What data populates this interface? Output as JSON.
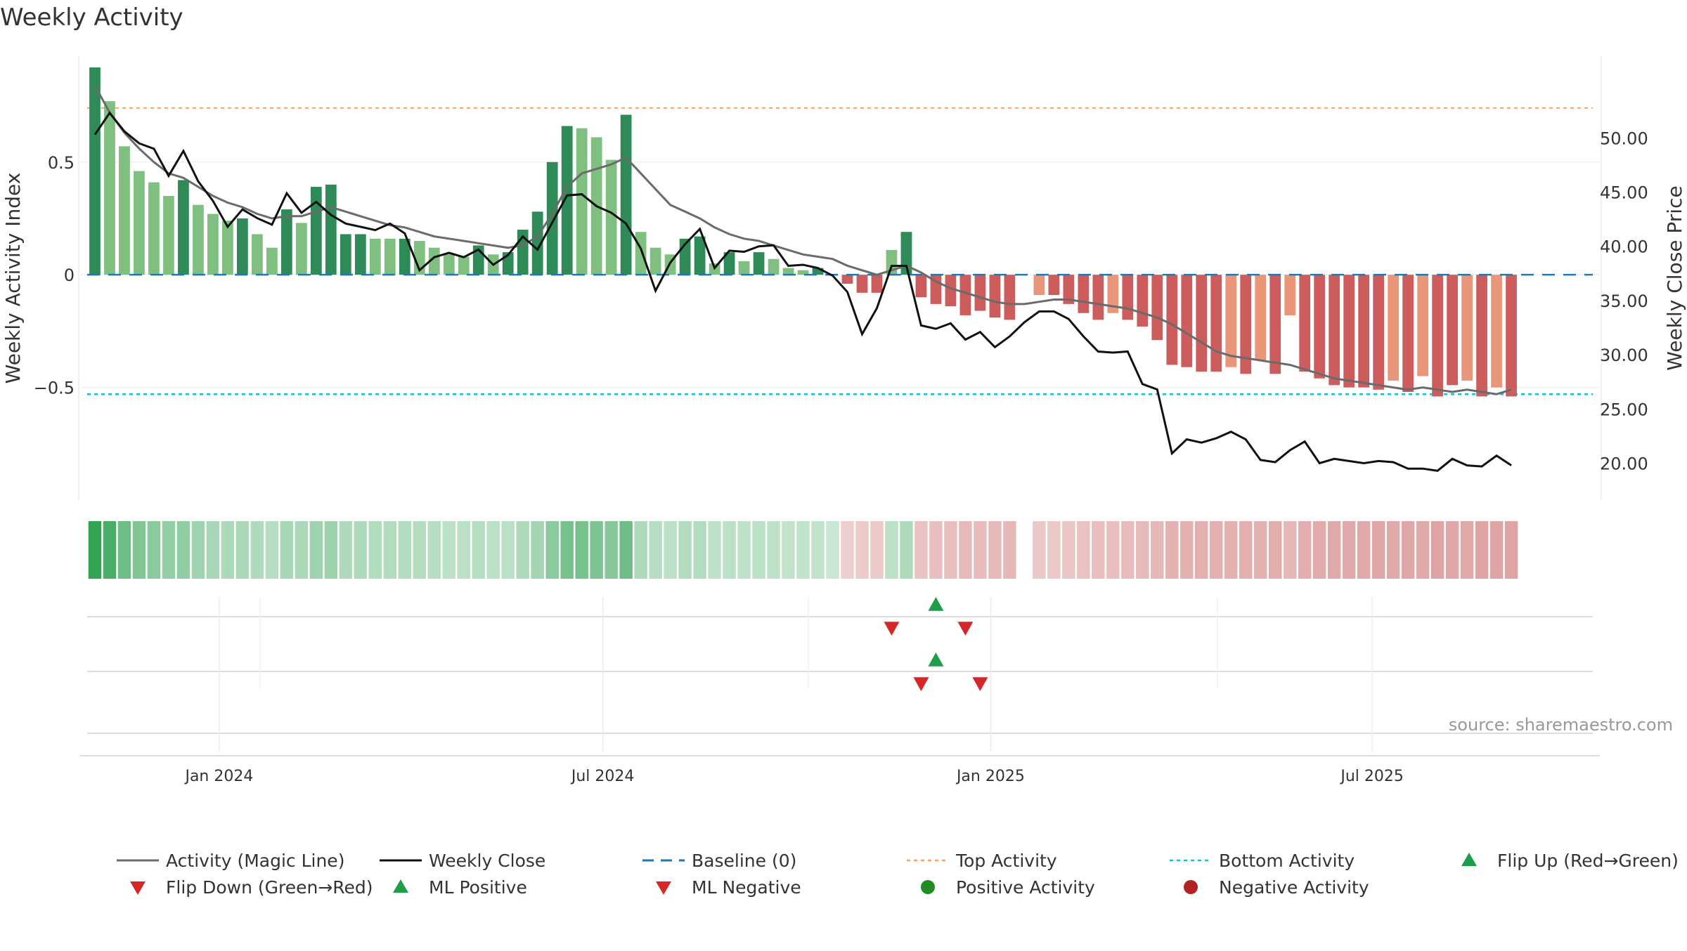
{
  "chart_data": {
    "type": "bar",
    "title": "Weekly Activity",
    "ylabel_left": "Weekly Activity Index",
    "ylabel_right": "Weekly Close Price",
    "source": "source: sharemaestro.com",
    "left_axis": {
      "ylim": [
        -1.0,
        0.92
      ],
      "ticks": [
        0.5,
        0,
        -0.5
      ],
      "tick_labels": [
        "0.5",
        "0",
        "−0.5"
      ]
    },
    "right_axis": {
      "ylim": [
        16.6,
        56.5
      ],
      "ticks": [
        50,
        45,
        40,
        35,
        30,
        25,
        20
      ],
      "tick_labels": [
        "50.00",
        "45.00",
        "40.00",
        "35.00",
        "30.00",
        "25.00",
        "20.00"
      ]
    },
    "x_axis": {
      "start": "2023-10-27",
      "end": "2025-10-17",
      "ticks": [
        {
          "label": "Jan 2024",
          "date": "2024-01-01"
        },
        {
          "label": "Jul 2024",
          "date": "2024-07-01"
        },
        {
          "label": "Jan 2025",
          "date": "2025-01-01"
        },
        {
          "label": "Jul 2025",
          "date": "2025-07-01"
        }
      ]
    },
    "colors": {
      "pos_dark": "#2e8b57",
      "pos_light": "#7fbf7f",
      "neg_dark": "#cd5c5c",
      "neg_light": "#e9967a",
      "magic_line": "#6b6b6b",
      "close_line": "#111111",
      "baseline": "#1f77b4",
      "top_line": "#f4a261",
      "bottom_line": "#17becf",
      "marker_up": "#1e9e4a",
      "marker_down": "#d62728",
      "positive_dot": "#228b22",
      "negative_dot": "#b22222"
    },
    "reference_lines": {
      "baseline": 0,
      "top_activity": 0.74,
      "bottom_activity": -0.53
    },
    "series": [
      {
        "name": "Weekly Activity",
        "kind": "bar",
        "start_date": "2023-11-03",
        "interval_days": 7,
        "values": [
          0.92,
          0.77,
          0.57,
          0.46,
          0.41,
          0.35,
          0.42,
          0.31,
          0.27,
          0.24,
          0.25,
          0.18,
          0.12,
          0.29,
          0.23,
          0.39,
          0.4,
          0.18,
          0.18,
          0.16,
          0.16,
          0.16,
          0.15,
          0.12,
          0.09,
          0.08,
          0.13,
          0.09,
          0.1,
          0.2,
          0.28,
          0.5,
          0.66,
          0.65,
          0.61,
          0.51,
          0.71,
          0.19,
          0.12,
          0.09,
          0.16,
          0.17,
          0.05,
          0.1,
          0.06,
          0.1,
          0.07,
          0.03,
          0.02,
          0.03,
          0.0,
          -0.04,
          -0.08,
          -0.08,
          0.11,
          0.19,
          -0.1,
          -0.13,
          -0.14,
          -0.18,
          -0.16,
          -0.19,
          -0.2,
          null,
          -0.09,
          -0.09,
          -0.13,
          -0.17,
          -0.2,
          -0.17,
          -0.2,
          -0.23,
          -0.29,
          -0.4,
          -0.41,
          -0.43,
          -0.43,
          -0.41,
          -0.44,
          -0.38,
          -0.44,
          -0.18,
          -0.43,
          -0.46,
          -0.49,
          -0.5,
          -0.5,
          -0.51,
          -0.47,
          -0.52,
          -0.45,
          -0.54,
          -0.49,
          -0.47,
          -0.54,
          -0.5,
          -0.54
        ],
        "shade": [
          "d",
          "l",
          "l",
          "l",
          "l",
          "l",
          "d",
          "l",
          "l",
          "l",
          "d",
          "l",
          "l",
          "d",
          "l",
          "d",
          "d",
          "d",
          "d",
          "l",
          "l",
          "d",
          "l",
          "l",
          "l",
          "l",
          "d",
          "l",
          "d",
          "d",
          "d",
          "d",
          "d",
          "l",
          "l",
          "l",
          "d",
          "l",
          "l",
          "l",
          "d",
          "d",
          "l",
          "d",
          "l",
          "d",
          "l",
          "l",
          "l",
          "d",
          "d",
          "d",
          "d",
          "d",
          "l",
          "d",
          "d",
          "d",
          "d",
          "d",
          "d",
          "d",
          "d",
          null,
          "l",
          "d",
          "d",
          "d",
          "d",
          "l",
          "d",
          "d",
          "d",
          "d",
          "d",
          "d",
          "d",
          "l",
          "d",
          "l",
          "d",
          "l",
          "d",
          "d",
          "d",
          "d",
          "d",
          "d",
          "l",
          "d",
          "l",
          "d",
          "d",
          "l",
          "d",
          "l",
          "d"
        ]
      },
      {
        "name": "Activity (Magic Line)",
        "kind": "line",
        "start_date": "2023-11-03",
        "interval_days": 7,
        "values": [
          0.84,
          0.72,
          0.63,
          0.56,
          0.5,
          0.45,
          0.43,
          0.39,
          0.35,
          0.32,
          0.3,
          0.27,
          0.25,
          0.26,
          0.26,
          0.28,
          0.3,
          0.28,
          0.26,
          0.24,
          0.22,
          0.21,
          0.19,
          0.17,
          0.16,
          0.15,
          0.14,
          0.13,
          0.12,
          0.13,
          0.17,
          0.27,
          0.39,
          0.45,
          0.47,
          0.49,
          0.52,
          0.45,
          0.38,
          0.31,
          0.28,
          0.25,
          0.21,
          0.18,
          0.16,
          0.15,
          0.13,
          0.11,
          0.09,
          0.08,
          0.07,
          0.04,
          0.02,
          0.0,
          0.02,
          0.04,
          0.01,
          -0.03,
          -0.06,
          -0.08,
          -0.1,
          -0.12,
          -0.13,
          -0.13,
          -0.12,
          -0.11,
          -0.11,
          -0.12,
          -0.13,
          -0.14,
          -0.15,
          -0.17,
          -0.19,
          -0.22,
          -0.26,
          -0.3,
          -0.34,
          -0.36,
          -0.37,
          -0.38,
          -0.39,
          -0.4,
          -0.42,
          -0.44,
          -0.46,
          -0.47,
          -0.48,
          -0.49,
          -0.5,
          -0.51,
          -0.5,
          -0.51,
          -0.52,
          -0.51,
          -0.52,
          -0.53,
          -0.51
        ]
      },
      {
        "name": "Weekly Close",
        "kind": "line",
        "axis": "right",
        "start_date": "2023-11-03",
        "interval_days": 7,
        "values": [
          50.3,
          52.3,
          50.6,
          49.5,
          49.0,
          46.5,
          48.8,
          46.0,
          44.2,
          41.8,
          43.4,
          42.6,
          42.0,
          44.9,
          43.1,
          44.1,
          42.9,
          42.1,
          41.8,
          41.5,
          42.1,
          41.2,
          37.8,
          39.0,
          39.4,
          39.0,
          39.7,
          38.3,
          39.2,
          40.9,
          39.7,
          42.2,
          44.7,
          44.8,
          43.7,
          43.1,
          42.1,
          39.8,
          35.9,
          38.5,
          40.2,
          41.6,
          38.0,
          39.6,
          39.5,
          40.0,
          40.1,
          38.2,
          38.3,
          38.0,
          37.3,
          35.8,
          31.9,
          34.3,
          38.2,
          38.2,
          32.7,
          32.4,
          32.9,
          31.4,
          32.1,
          30.7,
          31.7,
          33.0,
          34.0,
          34.0,
          33.3,
          31.7,
          30.3,
          30.2,
          30.3,
          27.3,
          26.8,
          20.9,
          22.2,
          21.9,
          22.3,
          22.9,
          22.2,
          20.3,
          20.1,
          21.2,
          22.0,
          20.0,
          20.4,
          20.2,
          20.0,
          20.2,
          20.1,
          19.5,
          19.5,
          19.3,
          20.4,
          19.8,
          19.7,
          20.7,
          19.8
        ]
      },
      {
        "name": "Activity Strip",
        "kind": "strip",
        "start_date": "2023-11-03",
        "interval_days": 7,
        "values": [
          0.92,
          0.8,
          0.6,
          0.5,
          0.45,
          0.4,
          0.42,
          0.35,
          0.3,
          0.28,
          0.28,
          0.25,
          0.22,
          0.3,
          0.28,
          0.35,
          0.36,
          0.25,
          0.25,
          0.24,
          0.24,
          0.24,
          0.23,
          0.22,
          0.2,
          0.2,
          0.22,
          0.2,
          0.2,
          0.26,
          0.32,
          0.45,
          0.55,
          0.55,
          0.52,
          0.48,
          0.6,
          0.25,
          0.22,
          0.2,
          0.24,
          0.24,
          0.18,
          0.2,
          0.18,
          0.2,
          0.18,
          0.16,
          0.15,
          0.15,
          0.12,
          -0.12,
          -0.14,
          -0.14,
          0.2,
          0.25,
          -0.2,
          -0.22,
          -0.22,
          -0.24,
          -0.23,
          -0.24,
          -0.25,
          null,
          -0.15,
          -0.16,
          -0.18,
          -0.2,
          -0.22,
          -0.22,
          -0.23,
          -0.24,
          -0.26,
          -0.3,
          -0.3,
          -0.31,
          -0.31,
          -0.3,
          -0.31,
          -0.3,
          -0.32,
          -0.26,
          -0.32,
          -0.33,
          -0.34,
          -0.35,
          -0.35,
          -0.36,
          -0.34,
          -0.36,
          -0.34,
          -0.38,
          -0.36,
          -0.35,
          -0.38,
          -0.37,
          -0.38
        ]
      },
      {
        "name": "Flip Up (Red→Green)",
        "kind": "marker-up",
        "dates": [
          "2024-12-06"
        ]
      },
      {
        "name": "Flip Down (Green→Red)",
        "kind": "marker-down",
        "dates": [
          "2024-11-15",
          "2024-12-20"
        ]
      },
      {
        "name": "ML Positive",
        "kind": "marker-up",
        "dates": [
          "2024-12-06"
        ]
      },
      {
        "name": "ML Negative",
        "kind": "marker-down",
        "dates": [
          "2024-11-29",
          "2024-12-27"
        ]
      },
      {
        "name": "Positive Activity",
        "kind": "dot-row",
        "dates": []
      },
      {
        "name": "Negative Activity",
        "kind": "dot-row",
        "dates": []
      }
    ],
    "legend": {
      "placement": "bottom",
      "items": [
        {
          "label": "Activity (Magic Line)",
          "symbol": "solid-line",
          "color": "#6b6b6b"
        },
        {
          "label": "Weekly Close",
          "symbol": "solid-line",
          "color": "#111111"
        },
        {
          "label": "Baseline (0)",
          "symbol": "dashed-line",
          "color": "#1f77b4"
        },
        {
          "label": "Top Activity",
          "symbol": "dotted-line",
          "color": "#f4a261"
        },
        {
          "label": "Bottom Activity",
          "symbol": "dotted-line",
          "color": "#17becf"
        },
        {
          "label": "Flip Up (Red→Green)",
          "symbol": "triangle-up",
          "color": "#1e9e4a"
        },
        {
          "label": "Flip Down (Green→Red)",
          "symbol": "triangle-down",
          "color": "#d62728"
        },
        {
          "label": "ML Positive",
          "symbol": "triangle-up",
          "color": "#1e9e4a"
        },
        {
          "label": "ML Negative",
          "symbol": "triangle-down",
          "color": "#d62728"
        },
        {
          "label": "Positive Activity",
          "symbol": "circle",
          "color": "#228b22"
        },
        {
          "label": "Negative Activity",
          "symbol": "circle",
          "color": "#b22222"
        }
      ]
    }
  }
}
